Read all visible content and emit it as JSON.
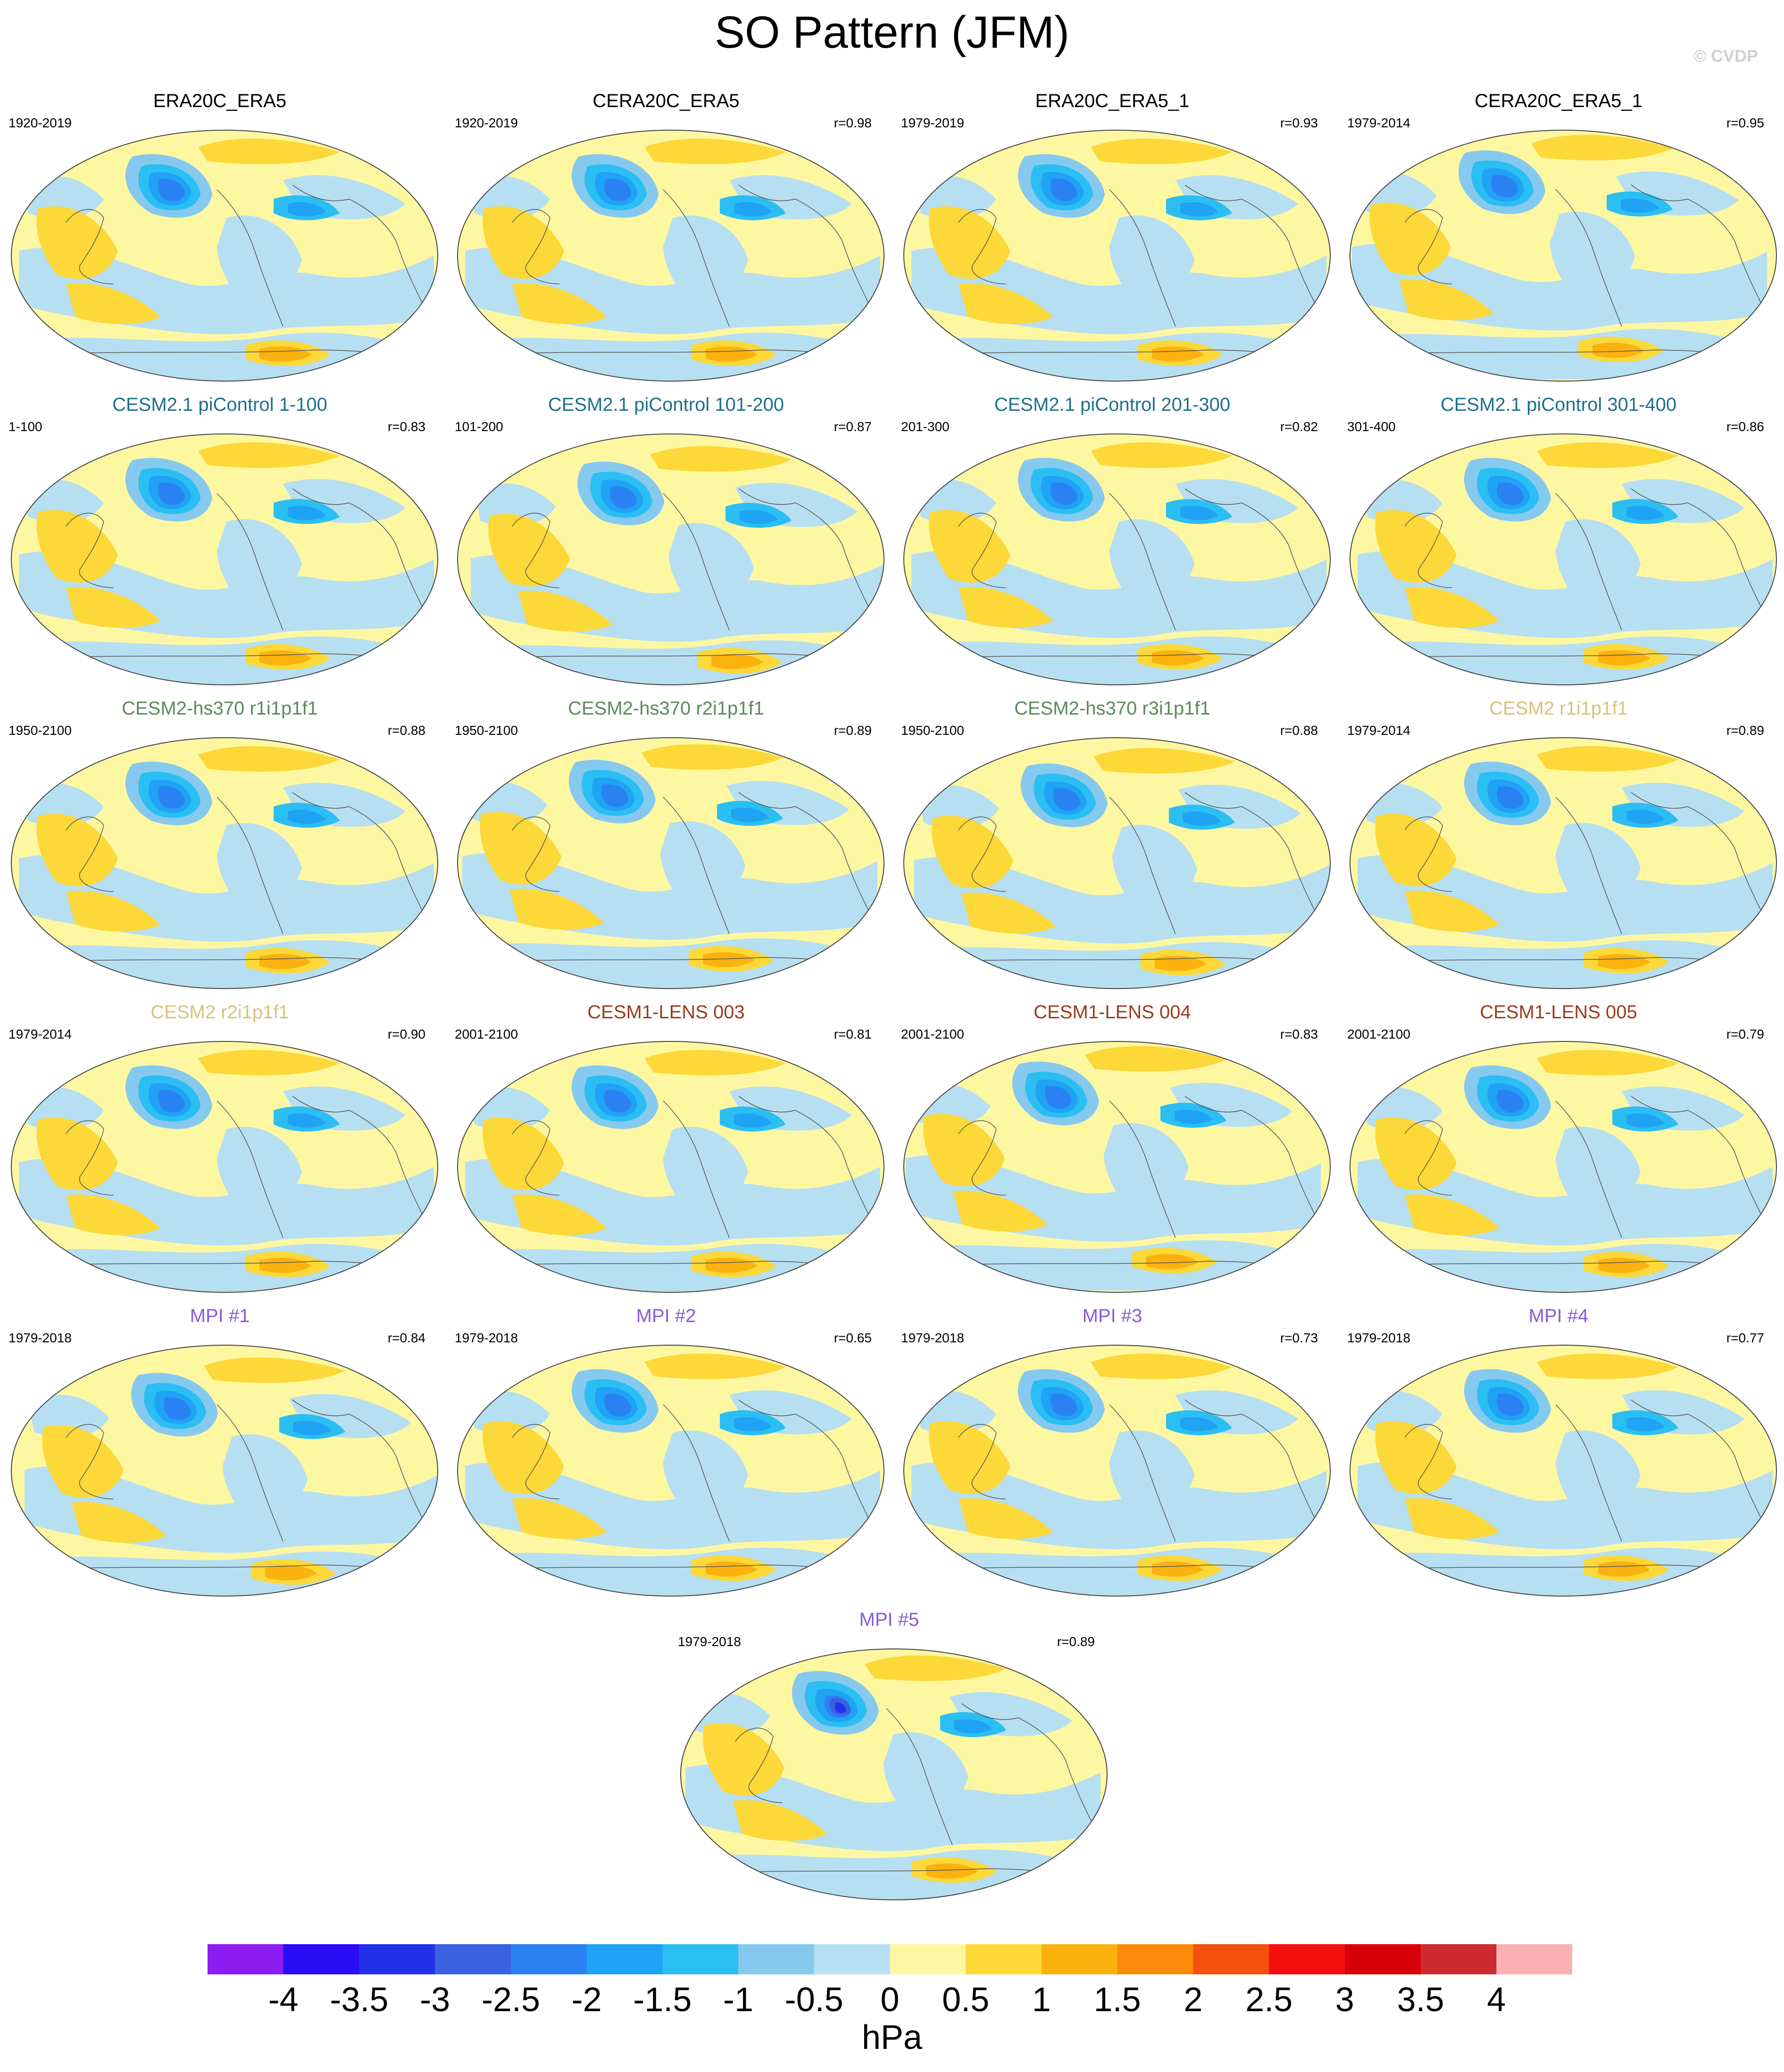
{
  "title": "SO Pattern (JFM)",
  "credit": "© CVDP",
  "chart_data": {
    "type": "heatmap",
    "projection": "global map (Hammer), Pacific-centered",
    "panels": [
      {
        "title": "ERA20C_ERA5",
        "period": "1920-2019",
        "r": "",
        "title_color": "#000000"
      },
      {
        "title": "CERA20C_ERA5",
        "period": "1920-2019",
        "r": "r=0.98",
        "title_color": "#000000"
      },
      {
        "title": "ERA20C_ERA5_1",
        "period": "1979-2019",
        "r": "r=0.93",
        "title_color": "#000000"
      },
      {
        "title": "CERA20C_ERA5_1",
        "period": "1979-2014",
        "r": "r=0.95",
        "title_color": "#000000"
      },
      {
        "title": "CESM2.1 piControl 1-100",
        "period": "1-100",
        "r": "r=0.83",
        "title_color": "#1f6f8b"
      },
      {
        "title": "CESM2.1 piControl 101-200",
        "period": "101-200",
        "r": "r=0.87",
        "title_color": "#1f6f8b"
      },
      {
        "title": "CESM2.1 piControl 201-300",
        "period": "201-300",
        "r": "r=0.82",
        "title_color": "#1f6f8b"
      },
      {
        "title": "CESM2.1 piControl 301-400",
        "period": "301-400",
        "r": "r=0.86",
        "title_color": "#1f6f8b"
      },
      {
        "title": "CESM2-hs370 r1i1p1f1",
        "period": "1950-2100",
        "r": "r=0.88",
        "title_color": "#5a8a5a"
      },
      {
        "title": "CESM2-hs370 r2i1p1f1",
        "period": "1950-2100",
        "r": "r=0.89",
        "title_color": "#5a8a5a"
      },
      {
        "title": "CESM2-hs370 r3i1p1f1",
        "period": "1950-2100",
        "r": "r=0.88",
        "title_color": "#5a8a5a"
      },
      {
        "title": "CESM2 r1i1p1f1",
        "period": "1979-2014",
        "r": "r=0.89",
        "title_color": "#d8c27a"
      },
      {
        "title": "CESM2 r2i1p1f1",
        "period": "1979-2014",
        "r": "r=0.90",
        "title_color": "#d8c27a"
      },
      {
        "title": "CESM1-LENS 003",
        "period": "2001-2100",
        "r": "r=0.81",
        "title_color": "#9a3b1d"
      },
      {
        "title": "CESM1-LENS 004",
        "period": "2001-2100",
        "r": "r=0.83",
        "title_color": "#9a3b1d"
      },
      {
        "title": "CESM1-LENS 005",
        "period": "2001-2100",
        "r": "r=0.79",
        "title_color": "#9a3b1d"
      },
      {
        "title": "MPI #1",
        "period": "1979-2018",
        "r": "r=0.84",
        "title_color": "#8a5ad6"
      },
      {
        "title": "MPI #2",
        "period": "1979-2018",
        "r": "r=0.65",
        "title_color": "#8a5ad6"
      },
      {
        "title": "MPI #3",
        "period": "1979-2018",
        "r": "r=0.73",
        "title_color": "#8a5ad6"
      },
      {
        "title": "MPI #4",
        "period": "1979-2018",
        "r": "r=0.77",
        "title_color": "#8a5ad6"
      },
      {
        "title": "MPI #5",
        "period": "1979-2018",
        "r": "r=0.89",
        "title_color": "#8a5ad6"
      }
    ],
    "colorbar": {
      "units": "hPa",
      "labels": [
        "-4",
        "-3.5",
        "-3",
        "-2.5",
        "-2",
        "-1.5",
        "-1",
        "-0.5",
        "0",
        "0.5",
        "1",
        "1.5",
        "2",
        "2.5",
        "3",
        "3.5",
        "4"
      ],
      "levels": [
        -4,
        -3.5,
        -3,
        -2.5,
        -2,
        -1.5,
        -1,
        -0.5,
        0,
        0.5,
        1,
        1.5,
        2,
        2.5,
        3,
        3.5,
        4
      ],
      "colors": [
        "#8c1cf0",
        "#2a0cf5",
        "#2330ea",
        "#3a62e0",
        "#2a82f2",
        "#1fa3f5",
        "#2bbef2",
        "#86c9ef",
        "#b7dff2",
        "#fef7a2",
        "#fcd838",
        "#fbb20f",
        "#fb8a0a",
        "#f5500e",
        "#f51010",
        "#d60008",
        "#cc2b2f",
        "#fbb0b2"
      ]
    }
  }
}
